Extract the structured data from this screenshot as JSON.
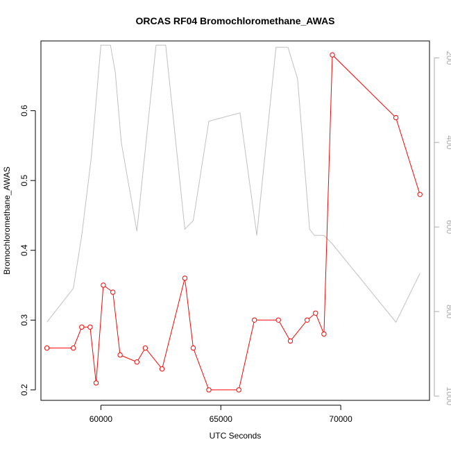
{
  "chart_data": {
    "type": "line",
    "title": "ORCAS RF04 Bromochloromethane_AWAS",
    "xlabel": "UTC Seconds",
    "ylabel": "Bromochloromethane_AWAS",
    "xlim": [
      57500,
      73700
    ],
    "ylim": [
      0.185,
      0.7
    ],
    "y2lim": [
      1010,
      160
    ],
    "x_ticks": [
      60000,
      65000,
      70000
    ],
    "x_tick_labels": [
      "60000",
      "65000",
      "70000"
    ],
    "y_ticks": [
      0.2,
      0.3,
      0.4,
      0.5,
      0.6
    ],
    "y_tick_labels": [
      "0.2",
      "0.3",
      "0.4",
      "0.5",
      "0.6"
    ],
    "y2_ticks": [
      200,
      400,
      600,
      800,
      1000
    ],
    "y2_tick_labels": [
      "200",
      "400",
      "600",
      "800",
      "1000"
    ],
    "y2_reversed": true,
    "grid": false,
    "colors": {
      "primary": "#ff0000",
      "secondary": "#c0c0c0",
      "secondary_ticks": "#aaaaaa",
      "axes": "#000000"
    },
    "series": [
      {
        "axis": "left",
        "style": "line+points",
        "x": [
          57750,
          58850,
          59200,
          59550,
          59800,
          60100,
          60500,
          60800,
          61500,
          61850,
          62550,
          63500,
          63850,
          64500,
          65750,
          66400,
          67400,
          67900,
          68600,
          68950,
          69300,
          69650,
          72300,
          73300
        ],
        "y": [
          0.26,
          0.26,
          0.29,
          0.29,
          0.21,
          0.35,
          0.34,
          0.25,
          0.24,
          0.26,
          0.23,
          0.36,
          0.26,
          0.2,
          0.2,
          0.3,
          0.3,
          0.27,
          0.3,
          0.31,
          0.28,
          0.68,
          0.59,
          0.48
        ]
      },
      {
        "axis": "right",
        "style": "line",
        "x": [
          57750,
          58850,
          59200,
          59600,
          60000,
          60400,
          60600,
          60850,
          61500,
          62300,
          62700,
          63500,
          63850,
          64500,
          65800,
          66500,
          67300,
          67800,
          68200,
          68700,
          68900,
          69300,
          69650,
          72300,
          73300
        ],
        "y": [
          825,
          745,
          620,
          435,
          170,
          170,
          235,
          400,
          610,
          170,
          170,
          605,
          585,
          350,
          330,
          620,
          175,
          175,
          250,
          605,
          620,
          620,
          640,
          825,
          710
        ]
      }
    ]
  }
}
